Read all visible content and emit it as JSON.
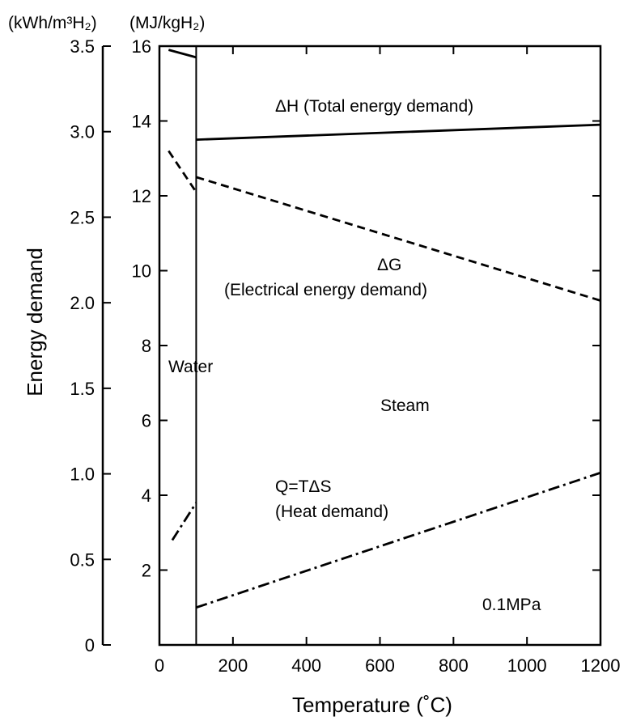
{
  "chart_data": {
    "type": "line",
    "title": "",
    "xlabel": "Temperature (˚C)",
    "ylabel": "Energy demand",
    "unit_labels": {
      "left": "(kWh/m³H₂)",
      "right": "(MJ/kgH₂)"
    },
    "xlim": [
      0,
      1200
    ],
    "ylim_mj": [
      0,
      16
    ],
    "ylim_kwh": [
      0,
      3.5
    ],
    "x_ticks": [
      "0",
      "200",
      "400",
      "600",
      "800",
      "1000",
      "1200"
    ],
    "y_ticks_mj": [
      "2",
      "4",
      "6",
      "8",
      "10",
      "12",
      "14",
      "16"
    ],
    "y_ticks_kwh": [
      "0",
      "0.5",
      "1.0",
      "1.5",
      "2.0",
      "2.5",
      "3.0",
      "3.5"
    ],
    "phase_boundary_x": 100,
    "grid": false,
    "series": [
      {
        "name": "ΔH (Total energy demand)",
        "style": "solid",
        "segments": [
          {
            "x": [
              25,
              100
            ],
            "y": [
              15.9,
              15.7
            ]
          },
          {
            "x": [
              100,
              1200
            ],
            "y": [
              13.5,
              13.9
            ]
          }
        ]
      },
      {
        "name": "ΔG (Electrical energy demand)",
        "style": "dashed",
        "segments": [
          {
            "x": [
              25,
              100
            ],
            "y": [
              13.2,
              12.1
            ]
          },
          {
            "x": [
              100,
              1200
            ],
            "y": [
              12.5,
              9.2
            ]
          }
        ]
      },
      {
        "name": "Q=TΔS (Heat demand)",
        "style": "dashdot",
        "segments": [
          {
            "x": [
              35,
              100
            ],
            "y": [
              2.8,
              3.8
            ]
          },
          {
            "x": [
              100,
              1200
            ],
            "y": [
              1.0,
              4.6
            ]
          }
        ]
      }
    ],
    "annotations": {
      "dh": "ΔH (Total energy demand)",
      "dg_1": "ΔG",
      "dg_2": "(Electrical energy demand)",
      "q_1": "Q=TΔS",
      "q_2": "(Heat demand)",
      "water": "Water",
      "steam": "Steam",
      "pressure": "0.1MPa"
    }
  }
}
